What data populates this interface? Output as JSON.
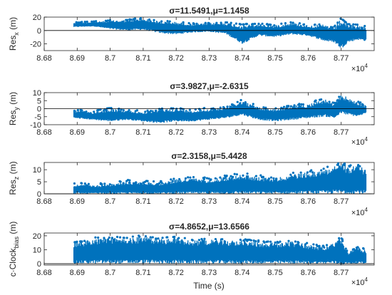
{
  "figure": {
    "x_exponent_label": "×10",
    "x_exponent_power": "4",
    "xlabel": "Time (s)"
  },
  "chart_data": [
    {
      "type": "scatter",
      "title": "σ=11.5491,μ=1.1458",
      "ylabel_main": "Res",
      "ylabel_sub": "x",
      "ylabel_unit": " (m)",
      "xlim": [
        8.68,
        8.78
      ],
      "ylim": [
        -30,
        20
      ],
      "yticks": [
        20,
        0,
        -20
      ],
      "xticks": [
        8.68,
        8.69,
        8.7,
        8.71,
        8.72,
        8.73,
        8.74,
        8.75,
        8.76,
        8.77
      ],
      "xtick_labels": [
        "8.68",
        "8.69",
        "8.7",
        "8.71",
        "8.72",
        "8.73",
        "8.74",
        "8.75",
        "8.76",
        "8.77"
      ],
      "grid": false,
      "color": "#0072BD",
      "x_range": [
        8.689,
        8.7775
      ],
      "envelope": {
        "x": [
          8.689,
          8.695,
          8.7,
          8.705,
          8.71,
          8.715,
          8.72,
          8.725,
          8.73,
          8.735,
          8.74,
          8.745,
          8.75,
          8.755,
          8.76,
          8.765,
          8.768,
          8.77,
          8.772,
          8.775,
          8.7775
        ],
        "top": [
          12,
          13,
          15,
          16,
          18,
          14,
          13,
          10,
          11,
          12,
          9,
          10,
          8,
          12,
          8,
          9,
          6,
          18,
          10,
          8,
          6
        ],
        "bot": [
          5,
          6,
          2,
          0,
          1,
          -4,
          -6,
          -3,
          -2,
          -5,
          -20,
          -8,
          -10,
          -6,
          -8,
          -16,
          -18,
          -28,
          -18,
          -14,
          -16
        ]
      }
    },
    {
      "type": "scatter",
      "title": "σ=3.9827,μ=-2.6315",
      "ylabel_main": "Res",
      "ylabel_sub": "y",
      "ylabel_unit": " (m)",
      "xlim": [
        8.68,
        8.78
      ],
      "ylim": [
        -10,
        10
      ],
      "yticks": [
        10,
        5,
        0,
        -5,
        -10
      ],
      "xticks": [
        8.68,
        8.69,
        8.7,
        8.71,
        8.72,
        8.73,
        8.74,
        8.75,
        8.76,
        8.77
      ],
      "xtick_labels": [
        "8.68",
        "8.69",
        "8.7",
        "8.71",
        "8.72",
        "8.73",
        "8.74",
        "8.75",
        "8.76",
        "8.77"
      ],
      "grid": false,
      "color": "#0072BD",
      "x_range": [
        8.689,
        8.7775
      ],
      "envelope": {
        "x": [
          8.689,
          8.695,
          8.7,
          8.705,
          8.71,
          8.715,
          8.72,
          8.725,
          8.73,
          8.735,
          8.74,
          8.745,
          8.75,
          8.755,
          8.76,
          8.765,
          8.768,
          8.77,
          8.772,
          8.775,
          8.7775
        ],
        "top": [
          -1,
          -2,
          0,
          -1,
          -2,
          0,
          0,
          -1,
          0,
          1,
          5,
          1,
          0,
          2,
          3,
          6,
          3,
          9,
          7,
          4,
          2
        ],
        "bot": [
          -6,
          -7,
          -8,
          -7,
          -8,
          -9,
          -8,
          -8,
          -7,
          -6,
          -4,
          -7,
          -8,
          -7,
          -6,
          -5,
          -6,
          -3,
          -4,
          -5,
          -3
        ]
      }
    },
    {
      "type": "scatter",
      "title": "σ=2.3158,μ=5.4428",
      "ylabel_main": "Res",
      "ylabel_sub": "z",
      "ylabel_unit": " (m)",
      "xlim": [
        8.68,
        8.78
      ],
      "ylim": [
        0,
        13
      ],
      "yticks": [
        10,
        5,
        0
      ],
      "xticks": [
        8.68,
        8.69,
        8.7,
        8.71,
        8.72,
        8.73,
        8.74,
        8.75,
        8.76,
        8.77
      ],
      "xtick_labels": [
        "8.68",
        "8.69",
        "8.7",
        "8.71",
        "8.72",
        "8.73",
        "8.74",
        "8.75",
        "8.76",
        "8.77"
      ],
      "grid": false,
      "color": "#0072BD",
      "x_range": [
        8.689,
        8.7775
      ],
      "envelope": {
        "x": [
          8.689,
          8.695,
          8.7,
          8.705,
          8.71,
          8.715,
          8.72,
          8.725,
          8.73,
          8.735,
          8.74,
          8.745,
          8.75,
          8.755,
          8.76,
          8.765,
          8.768,
          8.77,
          8.772,
          8.775,
          8.7775
        ],
        "top": [
          4,
          3.5,
          4,
          5,
          5,
          4.5,
          6,
          6.5,
          6,
          7,
          8,
          7,
          6.5,
          8,
          9,
          10,
          12,
          13,
          11,
          12,
          10
        ],
        "bot": [
          0,
          0,
          0,
          0,
          0,
          0,
          0,
          0,
          0,
          0,
          0,
          0,
          0,
          0,
          0,
          0,
          0,
          0,
          0,
          0,
          0
        ]
      }
    },
    {
      "type": "scatter",
      "title": "σ=4.8652,μ=13.6566",
      "ylabel_main": "c·Clock",
      "ylabel_sub": "bias",
      "ylabel_unit": " (m)",
      "xlim": [
        8.68,
        8.78
      ],
      "ylim": [
        -1,
        22
      ],
      "yticks": [
        20,
        10,
        0
      ],
      "xticks": [
        8.68,
        8.69,
        8.7,
        8.71,
        8.72,
        8.73,
        8.74,
        8.75,
        8.76,
        8.77
      ],
      "xtick_labels": [
        "8.68",
        "8.69",
        "8.7",
        "8.71",
        "8.72",
        "8.73",
        "8.74",
        "8.75",
        "8.76",
        "8.77"
      ],
      "grid": false,
      "color": "#0072BD",
      "x_range": [
        8.689,
        8.7775
      ],
      "envelope": {
        "x": [
          8.689,
          8.695,
          8.7,
          8.705,
          8.71,
          8.715,
          8.72,
          8.725,
          8.73,
          8.735,
          8.74,
          8.745,
          8.75,
          8.755,
          8.76,
          8.765,
          8.768,
          8.77,
          8.772,
          8.775,
          8.7775
        ],
        "top": [
          15,
          18,
          19,
          18,
          20,
          18,
          19,
          17,
          18,
          17,
          17,
          16,
          15,
          16,
          14,
          12,
          15,
          19,
          8,
          12,
          10
        ],
        "bot": [
          0,
          0,
          0,
          0,
          0,
          0,
          0,
          0,
          0,
          0,
          0,
          0,
          0,
          0,
          0,
          0,
          0,
          -1,
          0,
          0,
          0
        ]
      }
    }
  ]
}
